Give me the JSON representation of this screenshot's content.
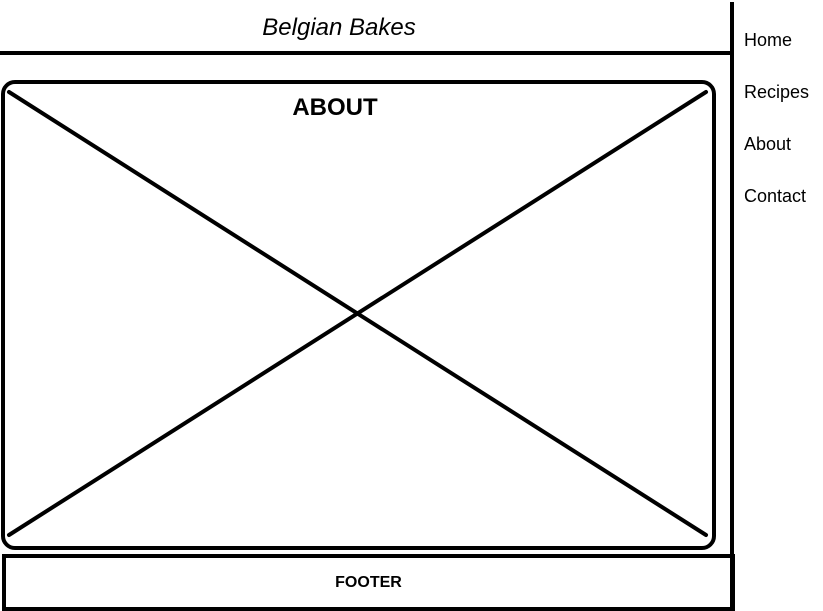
{
  "header": {
    "title": "Belgian Bakes"
  },
  "nav": {
    "items": [
      {
        "label": "Home"
      },
      {
        "label": "Recipes"
      },
      {
        "label": "About"
      },
      {
        "label": "Contact"
      }
    ]
  },
  "main": {
    "heading": "ABOUT",
    "image_placeholder": "crossed-box"
  },
  "footer": {
    "label": "FOOTER"
  },
  "colors": {
    "line": "#000000",
    "background": "#ffffff"
  }
}
